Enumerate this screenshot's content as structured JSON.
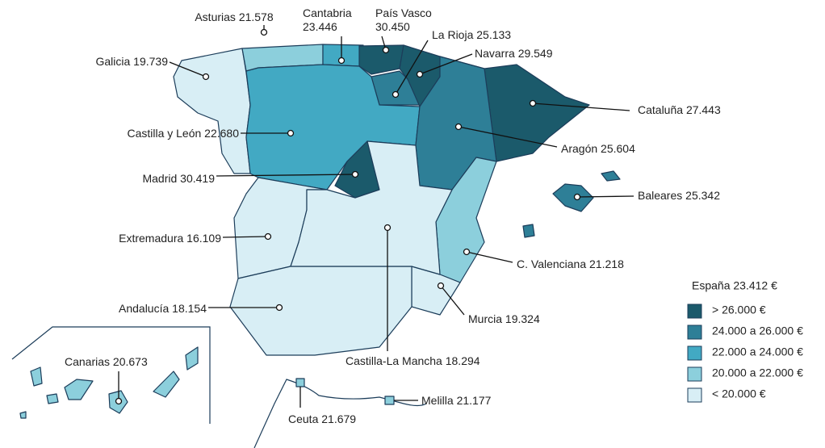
{
  "map_data": {
    "summary": "España 23.412 €",
    "legend": [
      {
        "label": "> 26.000 €",
        "color": "#1b5a6b"
      },
      {
        "label": "24.000 a 26.000 €",
        "color": "#2e7f97"
      },
      {
        "label": "22.000 a 24.000 €",
        "color": "#42a9c3"
      },
      {
        "label": "20.000 a 22.000 €",
        "color": "#8ccfdc"
      },
      {
        "label": "< 20.000 €",
        "color": "#d8eef5"
      }
    ],
    "regions": [
      {
        "name": "Galicia",
        "value": 19739,
        "value_label": "19.739",
        "color": "#d8eef5"
      },
      {
        "name": "Asturias",
        "value": 21578,
        "value_label": "21.578",
        "color": "#8ccfdc"
      },
      {
        "name": "Cantabria",
        "value": 23446,
        "value_label": "23.446",
        "color": "#42a9c3"
      },
      {
        "name": "País Vasco",
        "value": 30450,
        "value_label": "30.450",
        "color": "#1b5a6b"
      },
      {
        "name": "La Rioja",
        "value": 25133,
        "value_label": "25.133",
        "color": "#2e7f97"
      },
      {
        "name": "Navarra",
        "value": 29549,
        "value_label": "29.549",
        "color": "#1b5a6b"
      },
      {
        "name": "Cataluña",
        "value": 27443,
        "value_label": "27.443",
        "color": "#1b5a6b"
      },
      {
        "name": "Castilla y León",
        "value": 22680,
        "value_label": "22.680",
        "color": "#42a9c3"
      },
      {
        "name": "Aragón",
        "value": 25604,
        "value_label": "25.604",
        "color": "#2e7f97"
      },
      {
        "name": "Madrid",
        "value": 30419,
        "value_label": "30.419",
        "color": "#1b5a6b"
      },
      {
        "name": "Baleares",
        "value": 25342,
        "value_label": "25.342",
        "color": "#2e7f97"
      },
      {
        "name": "Extremadura",
        "value": 16109,
        "value_label": "16.109",
        "color": "#d8eef5"
      },
      {
        "name": "C. Valenciana",
        "value": 21218,
        "value_label": "21.218",
        "color": "#8ccfdc"
      },
      {
        "name": "Murcia",
        "value": 19324,
        "value_label": "19.324",
        "color": "#d8eef5"
      },
      {
        "name": "Andalucía",
        "value": 18154,
        "value_label": "18.154",
        "color": "#d8eef5"
      },
      {
        "name": "Castilla-La Mancha",
        "value": 18294,
        "value_label": "18.294",
        "color": "#d8eef5"
      },
      {
        "name": "Canarias",
        "value": 20673,
        "value_label": "20.673",
        "color": "#8ccfdc"
      },
      {
        "name": "Ceuta",
        "value": 21679,
        "value_label": "21.679",
        "color": "#8ccfdc"
      },
      {
        "name": "Melilla",
        "value": 21177,
        "value_label": "21.177",
        "color": "#8ccfdc"
      }
    ]
  }
}
